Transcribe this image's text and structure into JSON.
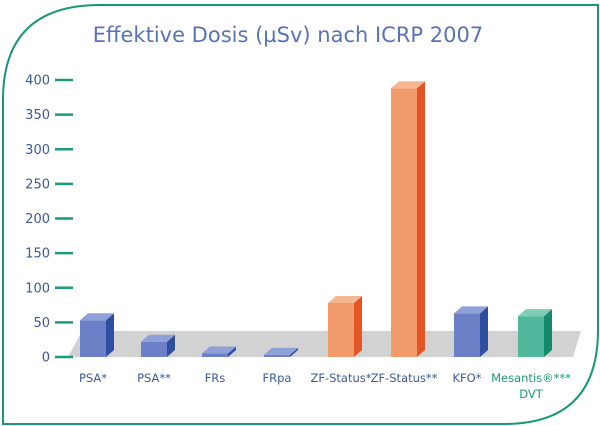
{
  "chart_data": {
    "type": "bar",
    "title": "Effektive Dosis (µSv) nach ICRP 2007",
    "xlabel": "",
    "ylabel": "",
    "ylim": [
      0,
      400
    ],
    "yticks": [
      0,
      50,
      100,
      150,
      200,
      250,
      300,
      350,
      400
    ],
    "grid": false,
    "legend": "none",
    "categories": [
      {
        "lines": [
          "PSA*"
        ],
        "color": "blue"
      },
      {
        "lines": [
          "PSA**"
        ],
        "color": "blue"
      },
      {
        "lines": [
          "FRs"
        ],
        "color": "blue"
      },
      {
        "lines": [
          "FRpa"
        ],
        "color": "blue"
      },
      {
        "lines": [
          "ZF-Status*"
        ],
        "color": "orange"
      },
      {
        "lines": [
          "ZF-Status**"
        ],
        "color": "orange"
      },
      {
        "lines": [
          "KFO*"
        ],
        "color": "blue"
      },
      {
        "lines": [
          "Mesantis®***",
          "DVT"
        ],
        "color": "green"
      }
    ],
    "values": [
      53,
      22,
      5,
      3,
      78,
      388,
      63,
      59
    ],
    "colors": {
      "blue": {
        "front": "#6b80c6",
        "side": "#2e4fa0",
        "top": "#8fa0d6",
        "label": "#3d5a99"
      },
      "orange": {
        "front": "#f39a6c",
        "side": "#e55424",
        "top": "#f7b692",
        "label": "#3d5a99"
      },
      "green": {
        "front": "#52b89c",
        "side": "#138a6c",
        "top": "#7fcdb6",
        "label": "#1a9b7b"
      },
      "frame": "#19977a",
      "floor": "#d2d2d2",
      "axis_text": "#3d5a99",
      "tick": "#1a9b7b"
    }
  }
}
